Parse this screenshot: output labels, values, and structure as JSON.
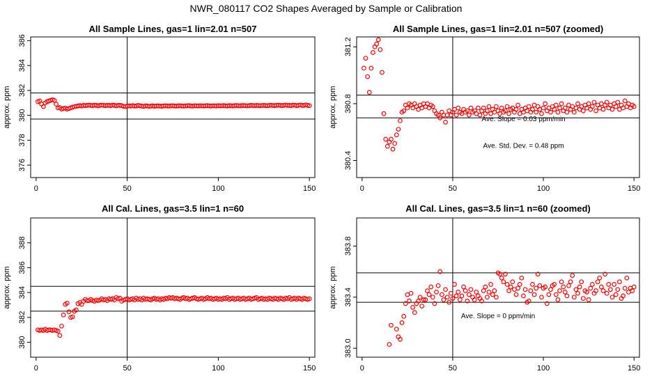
{
  "figure_title": "NWR_080117  CO2 Shapes Averaged by Sample or Calibration",
  "chart_data": [
    {
      "type": "scatter",
      "title": "All Sample Lines, gas=1 lin=2.01 n=507",
      "ylabel": "approx. ppm",
      "xlim": [
        -3,
        153
      ],
      "ylim": [
        375,
        386.3
      ],
      "xticks": [
        0,
        50,
        100,
        150
      ],
      "xtick_labels": [
        "0",
        "50",
        "100",
        "150"
      ],
      "yticks": [
        376,
        378,
        380,
        382,
        384,
        386
      ],
      "ytick_labels": [
        "376",
        "378",
        "380",
        "382",
        "384",
        "386"
      ],
      "vlines": [
        50
      ],
      "hlines": [
        379.7,
        381.8
      ],
      "marker_color": "#ff0000",
      "annotations": [],
      "x": [
        1,
        2,
        3,
        4,
        5,
        6,
        7,
        8,
        9,
        10,
        11,
        12,
        13,
        14,
        15,
        16,
        17,
        18,
        19,
        20,
        21,
        22,
        23,
        24,
        25,
        26,
        27,
        28,
        29,
        30,
        31,
        32,
        33,
        34,
        35,
        36,
        37,
        38,
        39,
        40,
        41,
        42,
        43,
        44,
        45,
        46,
        47,
        48,
        49,
        50,
        51,
        52,
        53,
        54,
        55,
        56,
        57,
        58,
        59,
        60,
        61,
        62,
        63,
        64,
        65,
        66,
        67,
        68,
        69,
        70,
        71,
        72,
        73,
        74,
        75,
        76,
        77,
        78,
        79,
        80,
        81,
        82,
        83,
        84,
        85,
        86,
        87,
        88,
        89,
        90,
        91,
        92,
        93,
        94,
        95,
        96,
        97,
        98,
        99,
        100,
        101,
        102,
        103,
        104,
        105,
        106,
        107,
        108,
        109,
        110,
        111,
        112,
        113,
        114,
        115,
        116,
        117,
        118,
        119,
        120,
        121,
        122,
        123,
        124,
        125,
        126,
        127,
        128,
        129,
        130,
        131,
        132,
        133,
        134,
        135,
        136,
        137,
        138,
        139,
        140,
        141,
        142,
        143,
        144,
        145,
        146,
        147,
        148,
        149,
        150
      ],
      "y": [
        381.1,
        381.15,
        380.9,
        380.7,
        381,
        381.1,
        381.15,
        381.2,
        381.25,
        381.2,
        380.9,
        380.6,
        380.62,
        380.5,
        380.55,
        380.58,
        380.5,
        380.55,
        380.6,
        380.65,
        380.7,
        380.72,
        380.75,
        380.78,
        380.75,
        380.8,
        380.78,
        380.8,
        380.82,
        380.8,
        380.78,
        380.82,
        380.8,
        380.76,
        380.8,
        380.82,
        380.8,
        380.78,
        380.8,
        380.8,
        380.78,
        380.82,
        380.8,
        380.76,
        380.8,
        380.8,
        380.78,
        380.72,
        380.7,
        380.75,
        380.76,
        380.74,
        380.78,
        380.74,
        380.75,
        380.8,
        380.76,
        380.74,
        380.72,
        380.76,
        380.75,
        380.72,
        380.74,
        380.76,
        380.73,
        380.75,
        380.76,
        380.74,
        380.73,
        380.75,
        380.77,
        380.75,
        380.74,
        380.76,
        380.77,
        380.75,
        380.74,
        380.76,
        380.77,
        380.75,
        380.74,
        380.76,
        380.77,
        380.78,
        380.75,
        380.74,
        380.77,
        380.76,
        380.75,
        380.77,
        380.76,
        380.75,
        380.77,
        380.78,
        380.76,
        380.74,
        380.77,
        380.76,
        380.75,
        380.78,
        380.76,
        380.77,
        380.78,
        380.76,
        380.75,
        380.78,
        380.77,
        380.75,
        380.78,
        380.79,
        380.77,
        380.76,
        380.78,
        380.79,
        380.77,
        380.76,
        380.78,
        380.8,
        380.79,
        380.77,
        380.8,
        380.78,
        380.77,
        380.79,
        380.8,
        380.78,
        380.77,
        380.8,
        380.81,
        380.79,
        380.78,
        380.8,
        380.82,
        380.8,
        380.78,
        380.8,
        380.83,
        380.79,
        380.8,
        380.78,
        380.82,
        380.81,
        380.78,
        380.8,
        380.83,
        380.8,
        380.79,
        380.84,
        380.8,
        380.78
      ]
    },
    {
      "type": "scatter",
      "title": "All Sample Lines, gas=1 lin=2.01 n=507 (zoomed)",
      "ylabel": "approx. ppm",
      "xlim": [
        -3,
        153
      ],
      "ylim": [
        380.28,
        381.27
      ],
      "xticks": [
        0,
        50,
        100,
        150
      ],
      "xtick_labels": [
        "0",
        "50",
        "100",
        "150"
      ],
      "yticks": [
        380.4,
        380.8,
        381.2
      ],
      "ytick_labels": [
        "380.4",
        "380.8",
        "381.2"
      ],
      "vlines": [
        50
      ],
      "hlines": [
        380.7,
        380.86
      ],
      "marker_color": "#ff0000",
      "annotations": [
        "Ave. Slope =  0.03  ppm/min",
        "Ave. Std. Dev. =  0.48  ppm"
      ],
      "x": [
        1,
        2,
        3,
        4,
        5,
        6,
        7,
        8,
        9,
        10,
        11,
        12,
        13,
        14,
        15,
        16,
        17,
        18,
        19,
        20,
        21,
        22,
        23,
        24,
        25,
        26,
        27,
        28,
        29,
        30,
        31,
        32,
        33,
        34,
        35,
        36,
        37,
        38,
        39,
        40,
        41,
        42,
        43,
        44,
        45,
        46,
        47,
        48,
        49,
        50,
        51,
        52,
        53,
        54,
        55,
        56,
        57,
        58,
        59,
        60,
        61,
        62,
        63,
        64,
        65,
        66,
        67,
        68,
        69,
        70,
        71,
        72,
        73,
        74,
        75,
        76,
        77,
        78,
        79,
        80,
        81,
        82,
        83,
        84,
        85,
        86,
        87,
        88,
        89,
        90,
        91,
        92,
        93,
        94,
        95,
        96,
        97,
        98,
        99,
        100,
        101,
        102,
        103,
        104,
        105,
        106,
        107,
        108,
        109,
        110,
        111,
        112,
        113,
        114,
        115,
        116,
        117,
        118,
        119,
        120,
        121,
        122,
        123,
        124,
        125,
        126,
        127,
        128,
        129,
        130,
        131,
        132,
        133,
        134,
        135,
        136,
        137,
        138,
        139,
        140,
        141,
        142,
        143,
        144,
        145,
        146,
        147,
        148,
        149,
        150
      ],
      "y": [
        381.05,
        381.12,
        380.99,
        380.88,
        381.05,
        381.16,
        381.2,
        381.22,
        381.25,
        381.18,
        381.02,
        380.73,
        380.55,
        380.5,
        380.53,
        380.55,
        380.48,
        380.52,
        380.58,
        380.62,
        380.68,
        380.74,
        380.75,
        380.79,
        380.77,
        380.8,
        380.79,
        380.77,
        380.8,
        380.78,
        380.76,
        380.79,
        380.77,
        380.8,
        380.78,
        380.8,
        380.77,
        380.79,
        380.78,
        380.75,
        380.73,
        380.72,
        380.7,
        380.74,
        380.72,
        380.67,
        380.72,
        380.75,
        380.72,
        380.74,
        380.76,
        380.72,
        380.77,
        380.74,
        380.73,
        380.76,
        380.74,
        380.75,
        380.72,
        380.77,
        380.74,
        380.75,
        380.73,
        380.77,
        380.72,
        380.75,
        380.77,
        380.73,
        380.75,
        380.78,
        380.73,
        380.76,
        380.74,
        380.78,
        380.75,
        380.73,
        380.77,
        380.74,
        380.75,
        380.78,
        380.73,
        380.76,
        380.77,
        380.74,
        380.76,
        380.79,
        380.73,
        380.76,
        380.74,
        380.77,
        380.75,
        380.78,
        380.74,
        380.76,
        380.79,
        380.74,
        380.78,
        380.76,
        380.73,
        380.77,
        380.8,
        380.75,
        380.77,
        380.74,
        380.78,
        380.76,
        380.79,
        380.74,
        380.77,
        380.8,
        380.75,
        380.77,
        380.74,
        380.79,
        380.76,
        380.78,
        380.74,
        380.77,
        380.8,
        380.76,
        380.78,
        380.75,
        380.79,
        380.77,
        380.8,
        380.76,
        380.78,
        380.81,
        380.75,
        380.79,
        380.77,
        380.8,
        380.76,
        380.79,
        380.81,
        380.77,
        380.79,
        380.76,
        380.8,
        380.78,
        380.81,
        380.76,
        380.79,
        380.77,
        380.82,
        380.78,
        380.8,
        380.77,
        380.79,
        380.78
      ]
    },
    {
      "type": "scatter",
      "title": "All Cal. Lines, gas=3.5 lin=1 n=60",
      "ylabel": "approx. ppm",
      "xlim": [
        -3,
        153
      ],
      "ylim": [
        378.8,
        390
      ],
      "xticks": [
        0,
        50,
        100,
        150
      ],
      "xtick_labels": [
        "0",
        "50",
        "100",
        "150"
      ],
      "yticks": [
        380,
        382,
        384,
        386,
        388
      ],
      "ytick_labels": [
        "380",
        "382",
        "384",
        "386",
        "388"
      ],
      "vlines": [
        50
      ],
      "hlines": [
        382.5,
        384.5
      ],
      "marker_color": "#ff0000",
      "annotations": [],
      "x": [
        1,
        2,
        3,
        4,
        5,
        6,
        7,
        8,
        9,
        10,
        11,
        12,
        13,
        14,
        15,
        16,
        17,
        18,
        19,
        20,
        21,
        22,
        23,
        24,
        25,
        26,
        27,
        28,
        29,
        30,
        31,
        32,
        33,
        34,
        35,
        36,
        37,
        38,
        39,
        40,
        41,
        42,
        43,
        44,
        45,
        46,
        47,
        48,
        49,
        50,
        51,
        52,
        53,
        54,
        55,
        56,
        57,
        58,
        59,
        60,
        61,
        62,
        63,
        64,
        65,
        66,
        67,
        68,
        69,
        70,
        71,
        72,
        73,
        74,
        75,
        76,
        77,
        78,
        79,
        80,
        81,
        82,
        83,
        84,
        85,
        86,
        87,
        88,
        89,
        90,
        91,
        92,
        93,
        94,
        95,
        96,
        97,
        98,
        99,
        100,
        101,
        102,
        103,
        104,
        105,
        106,
        107,
        108,
        109,
        110,
        111,
        112,
        113,
        114,
        115,
        116,
        117,
        118,
        119,
        120,
        121,
        122,
        123,
        124,
        125,
        126,
        127,
        128,
        129,
        130,
        131,
        132,
        133,
        134,
        135,
        136,
        137,
        138,
        139,
        140,
        141,
        142,
        143,
        144,
        145,
        146,
        147,
        148,
        149,
        150
      ],
      "y": [
        381,
        380.95,
        381,
        380.95,
        381.05,
        380.95,
        381,
        381,
        380.95,
        381,
        380.95,
        380.9,
        380.55,
        381.3,
        382.2,
        383.05,
        383.15,
        382.45,
        382,
        382.05,
        382.5,
        382.6,
        383.1,
        383.2,
        383.05,
        383.3,
        383.45,
        383.35,
        383.35,
        383.45,
        383.35,
        383.3,
        383.4,
        383.35,
        383.4,
        383.5,
        383.4,
        383.45,
        383.35,
        383.5,
        383.45,
        383.5,
        383.4,
        383.6,
        383.5,
        383.55,
        383.3,
        383.4,
        383.45,
        383.5,
        383.4,
        383.45,
        383.5,
        383.4,
        383.55,
        383.45,
        383.5,
        383.4,
        383.55,
        383.45,
        383.5,
        383.45,
        383.4,
        383.5,
        383.55,
        383.45,
        383.5,
        383.4,
        383.5,
        383.45,
        383.55,
        383.5,
        383.6,
        383.55,
        383.6,
        383.5,
        383.55,
        383.5,
        383.45,
        383.55,
        383.6,
        383.5,
        383.55,
        383.45,
        383.5,
        383.55,
        383.6,
        383.5,
        383.45,
        383.5,
        383.55,
        383.45,
        383.5,
        383.6,
        383.5,
        383.55,
        383.45,
        383.5,
        383.55,
        383.45,
        383.5,
        383.45,
        383.55,
        383.5,
        383.6,
        383.45,
        383.5,
        383.55,
        383.45,
        383.5,
        383.55,
        383.45,
        383.5,
        383.55,
        383.45,
        383.5,
        383.55,
        383.45,
        383.5,
        383.55,
        383.6,
        383.45,
        383.5,
        383.55,
        383.45,
        383.5,
        383.45,
        383.55,
        383.5,
        383.45,
        383.55,
        383.5,
        383.45,
        383.55,
        383.5,
        383.45,
        383.55,
        383.5,
        383.6,
        383.45,
        383.5,
        383.55,
        383.45,
        383.55,
        383.5,
        383.45,
        383.55,
        383.5,
        383.45,
        383.5
      ]
    },
    {
      "type": "scatter",
      "title": "All Cal. Lines, gas=3.5 lin=1 n=60 (zoomed)",
      "ylabel": "approx. ppm",
      "xlim": [
        -3,
        153
      ],
      "ylim": [
        382.93,
        384.02
      ],
      "xticks": [
        0,
        50,
        100,
        150
      ],
      "xtick_labels": [
        "0",
        "50",
        "100",
        "150"
      ],
      "yticks": [
        383.0,
        383.4,
        383.8
      ],
      "ytick_labels": [
        "383.0",
        "383.4",
        "383.8"
      ],
      "vlines": [
        50
      ],
      "hlines": [
        383.36,
        383.59
      ],
      "marker_color": "#ff0000",
      "annotations": [
        "Ave. Slope =  0  ppm/min"
      ],
      "x": [
        15,
        16,
        19,
        20,
        21,
        22,
        23,
        24,
        25,
        26,
        27,
        28,
        29,
        30,
        31,
        32,
        33,
        34,
        35,
        36,
        37,
        38,
        39,
        40,
        41,
        42,
        43,
        44,
        45,
        46,
        47,
        48,
        49,
        50,
        51,
        52,
        53,
        54,
        55,
        56,
        57,
        58,
        59,
        60,
        61,
        62,
        63,
        64,
        65,
        66,
        67,
        68,
        69,
        70,
        71,
        72,
        73,
        74,
        75,
        76,
        77,
        78,
        79,
        80,
        81,
        82,
        83,
        84,
        85,
        86,
        87,
        88,
        89,
        90,
        91,
        92,
        93,
        94,
        95,
        96,
        97,
        98,
        99,
        100,
        101,
        102,
        103,
        104,
        105,
        106,
        107,
        108,
        109,
        110,
        111,
        112,
        113,
        114,
        115,
        116,
        117,
        118,
        119,
        120,
        121,
        122,
        123,
        124,
        125,
        126,
        127,
        128,
        129,
        130,
        131,
        132,
        133,
        134,
        135,
        136,
        137,
        138,
        139,
        140,
        141,
        142,
        143,
        144,
        145,
        146,
        147,
        148,
        149,
        150
      ],
      "y": [
        383.03,
        383.18,
        383.15,
        383.09,
        383.07,
        383.2,
        383.25,
        383.35,
        383.42,
        383.37,
        383.43,
        383.32,
        383.28,
        383.35,
        383.37,
        383.4,
        383.33,
        383.38,
        383.38,
        383.45,
        383.42,
        383.48,
        383.4,
        383.35,
        383.44,
        383.49,
        383.6,
        383.42,
        383.38,
        383.46,
        383.4,
        383.36,
        383.43,
        383.39,
        383.5,
        383.41,
        383.44,
        383.38,
        383.41,
        383.48,
        383.45,
        383.37,
        383.42,
        383.46,
        383.4,
        383.38,
        383.44,
        383.41,
        383.39,
        383.37,
        383.45,
        383.48,
        383.4,
        383.44,
        383.5,
        383.42,
        383.45,
        383.4,
        383.59,
        383.58,
        383.55,
        383.52,
        383.58,
        383.5,
        383.45,
        383.48,
        383.52,
        383.46,
        383.42,
        383.47,
        383.5,
        383.55,
        383.41,
        383.46,
        383.36,
        383.37,
        383.45,
        383.5,
        383.42,
        383.47,
        383.58,
        383.49,
        383.4,
        383.47,
        383.48,
        383.35,
        383.42,
        383.46,
        383.49,
        383.5,
        383.42,
        383.38,
        383.45,
        383.52,
        383.48,
        383.44,
        383.41,
        383.49,
        383.52,
        383.57,
        383.4,
        383.46,
        383.43,
        383.48,
        383.52,
        383.39,
        383.45,
        383.44,
        383.38,
        383.47,
        383.5,
        383.43,
        383.45,
        383.52,
        383.55,
        383.48,
        383.45,
        383.58,
        383.43,
        383.5,
        383.46,
        383.4,
        383.5,
        383.42,
        383.46,
        383.52,
        383.39,
        383.41,
        383.47,
        383.55,
        383.44,
        383.47,
        383.45,
        383.48
      ]
    }
  ]
}
